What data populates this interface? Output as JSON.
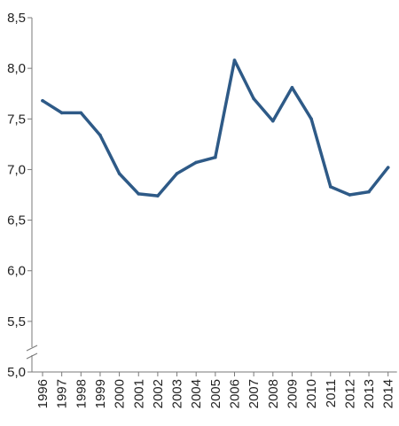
{
  "chart_data": {
    "type": "line",
    "title": "",
    "xlabel": "",
    "ylabel": "",
    "categories": [
      "1996",
      "1997",
      "1998",
      "1999",
      "2000",
      "2001",
      "2002",
      "2003",
      "2004",
      "2005",
      "2006",
      "2007",
      "2008",
      "2009",
      "2010",
      "2011",
      "2012",
      "2013",
      "2014"
    ],
    "series": [
      {
        "values": [
          7.68,
          7.56,
          7.56,
          7.34,
          6.96,
          6.76,
          6.74,
          6.96,
          7.07,
          7.12,
          8.08,
          7.7,
          7.48,
          7.81,
          7.5,
          6.83,
          6.75,
          6.78,
          7.02
        ],
        "color": "#2e5a87"
      }
    ],
    "ylim": [
      5.0,
      8.5
    ],
    "yticks": [
      5.0,
      5.5,
      6.0,
      6.5,
      7.0,
      7.5,
      8.0,
      8.5
    ],
    "ytick_labels": [
      "5,0",
      "5,5",
      "6,0",
      "6,5",
      "7,0",
      "7,5",
      "8,0",
      "8,5"
    ],
    "y_axis_break": true,
    "grid": false,
    "legend": "none"
  }
}
